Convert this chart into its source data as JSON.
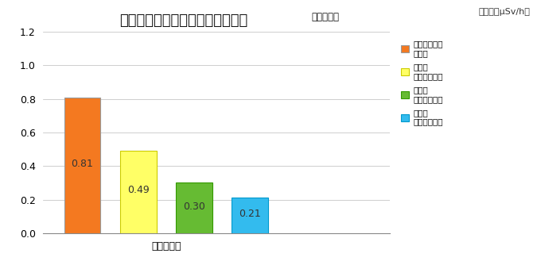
{
  "title": "平均空間線量率モニタリング結果",
  "title_suffix": "（黄区域）",
  "unit_label": "（単位：μSv/h）",
  "xlabel": "農地平均値",
  "ylim": [
    0.0,
    1.2
  ],
  "yticks": [
    0.0,
    0.2,
    0.4,
    0.6,
    0.8,
    1.0,
    1.2
  ],
  "bar_values": [
    0.81,
    0.49,
    0.3,
    0.21
  ],
  "bar_colors": [
    "#F47920",
    "#FFFF66",
    "#66BB33",
    "#33BBEE"
  ],
  "bar_edge_colors": [
    "#999999",
    "#CCCC00",
    "#339900",
    "#0099CC"
  ],
  "legend_labels_line1": [
    "原発事故直後",
    "除染前",
    "除染後",
    "事　後"
  ],
  "legend_labels_line2": [
    "推定値",
    "モニタリング",
    "モニタリング",
    "モニタリング"
  ],
  "legend_colors": [
    "#F47920",
    "#FFFF66",
    "#66BB33",
    "#33BBEE"
  ],
  "legend_edge_colors": [
    "#999999",
    "#CCCC00",
    "#339900",
    "#0099CC"
  ],
  "bar_width": 0.65,
  "figsize": [
    6.8,
    3.34
  ],
  "dpi": 100,
  "bg_color": "#FFFFFF",
  "grid_color": "#BBBBBB",
  "value_labels": [
    "0.81",
    "0.49",
    "0.30",
    "0.21"
  ]
}
